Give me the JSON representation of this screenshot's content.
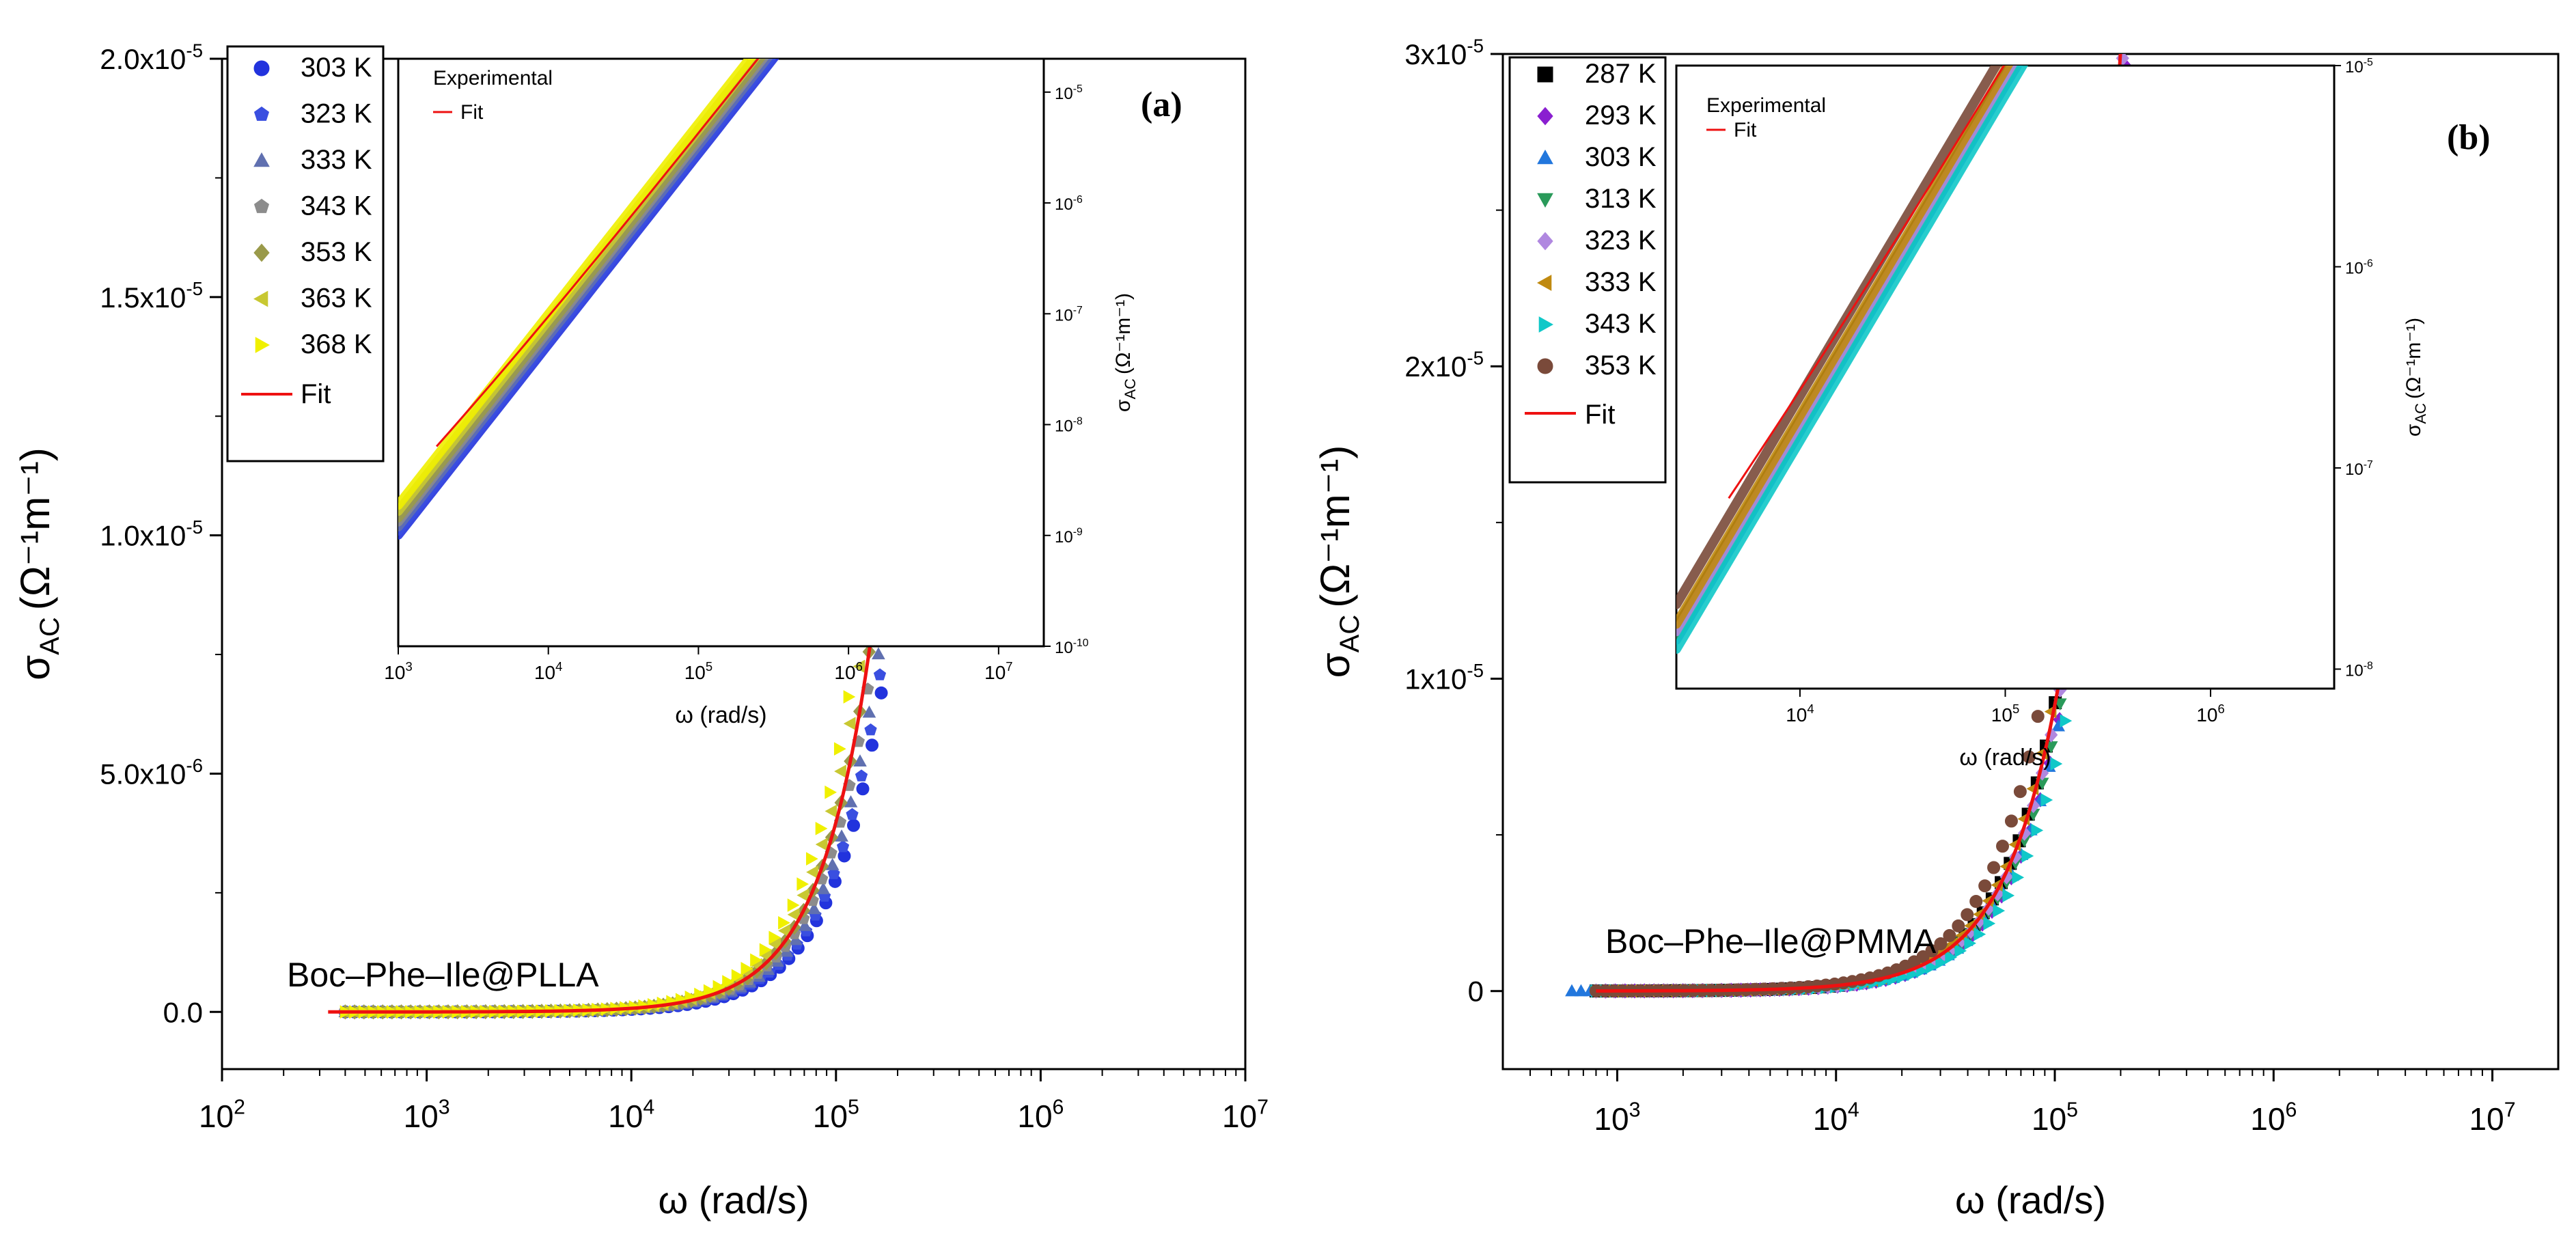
{
  "chart_data": [
    {
      "type": "scatter",
      "panel_label": "(a)",
      "sample_label": "Boc–Phe–Ile@PLLA",
      "xlabel": "ω (rad/s)",
      "ylabel": "σ",
      "ylabel_sub": "AC",
      "ylabel_units": "(Ω⁻¹m⁻¹)",
      "x_scale": "log",
      "xlim": [
        100,
        10000000
      ],
      "ylim": [
        -1.2e-06,
        2e-05
      ],
      "x_ticks": [
        {
          "value": 100,
          "base": "10",
          "exp": "2"
        },
        {
          "value": 1000,
          "base": "10",
          "exp": "3"
        },
        {
          "value": 10000,
          "base": "10",
          "exp": "4"
        },
        {
          "value": 100000,
          "base": "10",
          "exp": "5"
        },
        {
          "value": 1000000,
          "base": "10",
          "exp": "6"
        },
        {
          "value": 10000000,
          "base": "10",
          "exp": "7"
        }
      ],
      "y_ticks": [
        {
          "value": 0,
          "label": "0.0",
          "exp": ""
        },
        {
          "value": 5e-06,
          "label": "5.0x10",
          "exp": "-6"
        },
        {
          "value": 1e-05,
          "label": "1.0x10",
          "exp": "-5"
        },
        {
          "value": 1.5e-05,
          "label": "1.5x10",
          "exp": "-5"
        },
        {
          "value": 2e-05,
          "label": "2.0x10",
          "exp": "-5"
        }
      ],
      "legend_position": "top-left",
      "series": [
        {
          "name": "303 K",
          "color": "#2233dd",
          "marker": "circle",
          "xmin": 400,
          "xmax": 7800000,
          "sigma0": 0,
          "A": 7e-15,
          "s": 1.72
        },
        {
          "name": "323 K",
          "color": "#3a4fe0",
          "marker": "pentagon",
          "xmin": 400,
          "xmax": 7600000,
          "sigma0": 0,
          "A": 7.6e-15,
          "s": 1.72
        },
        {
          "name": "333 K",
          "color": "#6070b0",
          "marker": "triangle",
          "xmin": 400,
          "xmax": 7400000,
          "sigma0": 0,
          "A": 8.3e-15,
          "s": 1.72
        },
        {
          "name": "343 K",
          "color": "#8c8c8c",
          "marker": "pentagon",
          "xmin": 400,
          "xmax": 7200000,
          "sigma0": 0,
          "A": 9.2e-15,
          "s": 1.72
        },
        {
          "name": "353 K",
          "color": "#9a9a4a",
          "marker": "diamond",
          "xmin": 400,
          "xmax": 8800000,
          "sigma0": 0,
          "A": 1e-14,
          "s": 1.72
        },
        {
          "name": "363 K",
          "color": "#c8c832",
          "marker": "tri-left",
          "xmin": 400,
          "xmax": 8800000,
          "sigma0": 0,
          "A": 1.15e-14,
          "s": 1.72
        },
        {
          "name": "368 K",
          "color": "#f0f000",
          "marker": "tri-right",
          "xmin": 400,
          "xmax": 8500000,
          "sigma0": 0,
          "A": 1.3e-14,
          "s": 1.72
        }
      ],
      "fit": {
        "name": "Fit",
        "color": "#ee1111",
        "sigma0": 0,
        "A": 1e-14,
        "s": 1.72,
        "xmin": 330,
        "xmax": 7200000
      },
      "inset": {
        "legend": [
          "Experimental",
          "Fit"
        ],
        "xlabel": "ω (rad/s)",
        "ylabel": "σ",
        "ylabel_sub": "AC",
        "ylabel_units": "(Ω⁻¹m⁻¹)",
        "x_scale": "log",
        "y_scale": "log",
        "xlim": [
          1000,
          20000000
        ],
        "ylim": [
          1e-10,
          2e-05
        ],
        "x_ticks": [
          {
            "value": 1000,
            "base": "10",
            "exp": "3"
          },
          {
            "value": 10000,
            "base": "10",
            "exp": "4"
          },
          {
            "value": 100000,
            "base": "10",
            "exp": "5"
          },
          {
            "value": 1000000,
            "base": "10",
            "exp": "6"
          },
          {
            "value": 10000000,
            "base": "10",
            "exp": "7"
          }
        ],
        "y_ticks": [
          {
            "value": 1e-10,
            "base": "10",
            "exp": "-10"
          },
          {
            "value": 1e-09,
            "base": "10",
            "exp": "-9"
          },
          {
            "value": 1e-08,
            "base": "10",
            "exp": "-8"
          },
          {
            "value": 1e-07,
            "base": "10",
            "exp": "-7"
          },
          {
            "value": 1e-06,
            "base": "10",
            "exp": "-6"
          },
          {
            "value": 1e-05,
            "base": "10",
            "exp": "-5"
          }
        ],
        "series_range": [
          1000,
          9000000
        ]
      }
    },
    {
      "type": "scatter",
      "panel_label": "(b)",
      "sample_label": "Boc–Phe–Ile@PMMA",
      "xlabel": "ω (rad/s)",
      "ylabel": "σ",
      "ylabel_sub": "AC",
      "ylabel_units": "(Ω⁻¹m⁻¹)",
      "x_scale": "log",
      "xlim": [
        300,
        20000000
      ],
      "ylim": [
        -2.5e-06,
        3e-05
      ],
      "x_ticks": [
        {
          "value": 1000,
          "base": "10",
          "exp": "3"
        },
        {
          "value": 10000,
          "base": "10",
          "exp": "4"
        },
        {
          "value": 100000,
          "base": "10",
          "exp": "5"
        },
        {
          "value": 1000000,
          "base": "10",
          "exp": "6"
        },
        {
          "value": 10000000,
          "base": "10",
          "exp": "7"
        }
      ],
      "y_ticks": [
        {
          "value": 0,
          "label": "0",
          "exp": ""
        },
        {
          "value": 1e-05,
          "label": "1x10",
          "exp": "-5"
        },
        {
          "value": 2e-05,
          "label": "2x10",
          "exp": "-5"
        },
        {
          "value": 3e-05,
          "label": "3x10",
          "exp": "-5"
        }
      ],
      "legend_position": "top-left",
      "series": [
        {
          "name": "287 K",
          "color": "#000000",
          "marker": "square",
          "xmin": 800,
          "xmax": 6500000,
          "sigma0": 0,
          "A": 2.3e-14,
          "s": 1.72
        },
        {
          "name": "293 K",
          "color": "#8a1fd0",
          "marker": "diamond",
          "xmin": 800,
          "xmax": 12500000,
          "sigma0": 0,
          "A": 2e-14,
          "s": 1.72
        },
        {
          "name": "303 K",
          "color": "#2277dd",
          "marker": "triangle",
          "xmin": 620,
          "xmax": 6000000,
          "sigma0": 0,
          "A": 2e-14,
          "s": 1.72
        },
        {
          "name": "313 K",
          "color": "#2a9a5a",
          "marker": "tri-down",
          "xmin": 800,
          "xmax": 6000000,
          "sigma0": 0,
          "A": 2.1e-14,
          "s": 1.72
        },
        {
          "name": "323 K",
          "color": "#b088e0",
          "marker": "diamond",
          "xmin": 800,
          "xmax": 6000000,
          "sigma0": 0,
          "A": 2.2e-14,
          "s": 1.72
        },
        {
          "name": "333 K",
          "color": "#c08a10",
          "marker": "tri-left",
          "xmin": 800,
          "xmax": 6000000,
          "sigma0": 0,
          "A": 2.4e-14,
          "s": 1.72
        },
        {
          "name": "343 K",
          "color": "#10c8c8",
          "marker": "tri-right",
          "xmin": 800,
          "xmax": 11500000,
          "sigma0": 0,
          "A": 1.8e-14,
          "s": 1.72
        },
        {
          "name": "353 K",
          "color": "#7a4a3a",
          "marker": "circle",
          "xmin": 800,
          "xmax": 5500000,
          "sigma0": 0,
          "A": 3e-14,
          "s": 1.72
        }
      ],
      "fit": {
        "name": "Fit",
        "color": "#ee1111",
        "sigma0": 0,
        "A": 2.3e-14,
        "s": 1.72,
        "xmin": 800,
        "xmax": 1900000
      },
      "inset": {
        "legend": [
          "Experimental",
          "Fit"
        ],
        "xlabel": "ω (rad/s)",
        "ylabel": "σ",
        "ylabel_sub": "AC",
        "ylabel_units": "(Ω⁻¹m⁻¹)",
        "x_scale": "log",
        "y_scale": "log",
        "xlim": [
          2500,
          4000000
        ],
        "ylim": [
          8e-09,
          1e-05
        ],
        "x_ticks": [
          {
            "value": 10000,
            "base": "10",
            "exp": "4"
          },
          {
            "value": 100000,
            "base": "10",
            "exp": "5"
          },
          {
            "value": 1000000,
            "base": "10",
            "exp": "6"
          }
        ],
        "y_ticks": [
          {
            "value": 1e-08,
            "base": "10",
            "exp": "-8"
          },
          {
            "value": 1e-07,
            "base": "10",
            "exp": "-7"
          },
          {
            "value": 1e-06,
            "base": "10",
            "exp": "-6"
          },
          {
            "value": 1e-05,
            "base": "10",
            "exp": "-5"
          }
        ],
        "series_range": [
          2500,
          4000000
        ]
      }
    }
  ]
}
